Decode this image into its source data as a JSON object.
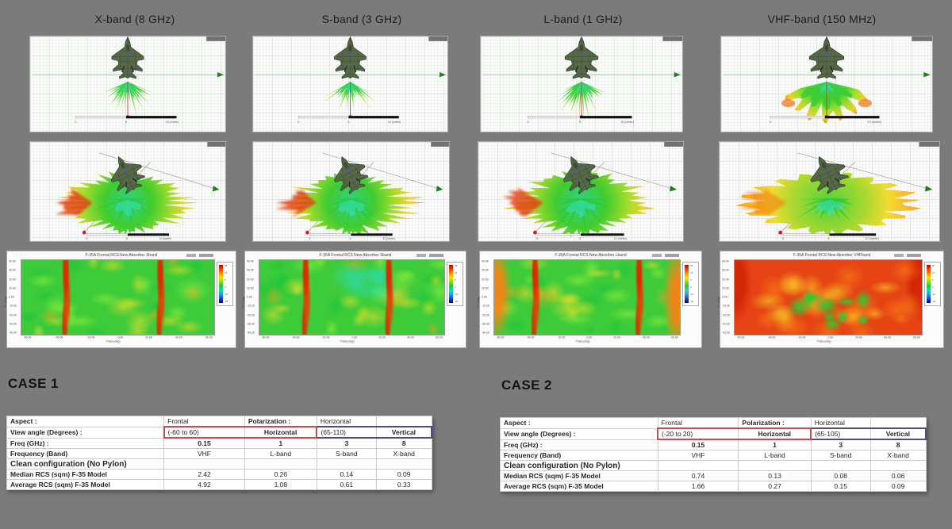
{
  "page": {
    "background_color": "#7b7b7b",
    "description": "F-35 radar cross section simulation comparison figure"
  },
  "columns": [
    {
      "band_id": "xband",
      "header": "X-band (8 GHz)",
      "heatmap_title": "F-35A Frontal RCS New Absorber Xband"
    },
    {
      "band_id": "sband",
      "header": "S-band (3 GHz)",
      "heatmap_title": "F-35A Frontal RCS New Absorber Sband"
    },
    {
      "band_id": "lband",
      "header": "L-band (1 GHz)",
      "heatmap_title": "F-35A Frontal RCS New Absorber Lband"
    },
    {
      "band_id": "vhf",
      "header": "VHF-band (150 MHz)",
      "heatmap_title": "F-35A Frontal RCS New Absorber VHFband"
    }
  ],
  "heatmap_axes": {
    "xlabel": "Theta (deg)",
    "ylabel": "Phi (deg)",
    "x_ticks": [
      "-60.00",
      "-40.00",
      "-20.00",
      "0.00",
      "20.00",
      "40.00",
      "60.00"
    ],
    "y_ticks": [
      "40.00",
      "30.00",
      "20.00",
      "10.00",
      "0.00",
      "-10.00",
      "-20.00",
      "-30.00",
      "-40.00"
    ],
    "colorbar_ticks": [
      "25",
      "15",
      "5",
      "0",
      "-10",
      "-25"
    ]
  },
  "scalebar": {
    "zero_label": "0",
    "mid_label": "5",
    "end_label": "10 (meter)"
  },
  "cases": [
    {
      "heading": "CASE 1",
      "table": {
        "rows": [
          {
            "cells": [
              "Aspect :",
              "Frontal",
              "Polarization :",
              "Horizontal",
              ""
            ]
          },
          {
            "cells": [
              "View angle (Degrees) :",
              "(-60 to 60)",
              "Horizontal",
              "(65-110)",
              "Vertical"
            ]
          },
          {
            "cells": [
              "Freq (GHz) :",
              "0.15",
              "1",
              "3",
              "8"
            ]
          },
          {
            "cells": [
              "Frequency (Band)",
              "VHF",
              "L-band",
              "S-band",
              "X-band"
            ]
          },
          {
            "cells": [
              "Clean configuration (No Pylon)",
              "",
              "",
              "",
              ""
            ]
          },
          {
            "cells": [
              "Median RCS (sqm) F-35 Model",
              "2.42",
              "0.26",
              "0.14",
              "0.09"
            ]
          },
          {
            "cells": [
              "Average RCS (sqm)  F-35 Model",
              "4.92",
              "1.08",
              "0.61",
              "0.33"
            ]
          }
        ]
      }
    },
    {
      "heading": "CASE 2",
      "table": {
        "rows": [
          {
            "cells": [
              "Aspect :",
              "Frontal",
              "Polarization :",
              "Horizontal",
              ""
            ]
          },
          {
            "cells": [
              "View angle (Degrees) :",
              "(-20 to 20)",
              "Horizontal",
              "(65-105)",
              "Vertical"
            ]
          },
          {
            "cells": [
              "Freq (GHz) :",
              "0.15",
              "1",
              "3",
              "8"
            ]
          },
          {
            "cells": [
              "Frequency (Band)",
              "VHF",
              "L-band",
              "S-band",
              "X-band"
            ]
          },
          {
            "cells": [
              "Clean configuration (No Pylon)",
              "",
              "",
              "",
              ""
            ]
          },
          {
            "cells": [
              "Median RCS (sqm) F-35 Model",
              "0.74",
              "0.13",
              "0.08",
              "0.06"
            ]
          },
          {
            "cells": [
              "Average RCS (sqm)  F-35 Model",
              "1.66",
              "0.27",
              "0.15",
              "0.09"
            ]
          }
        ]
      }
    }
  ]
}
